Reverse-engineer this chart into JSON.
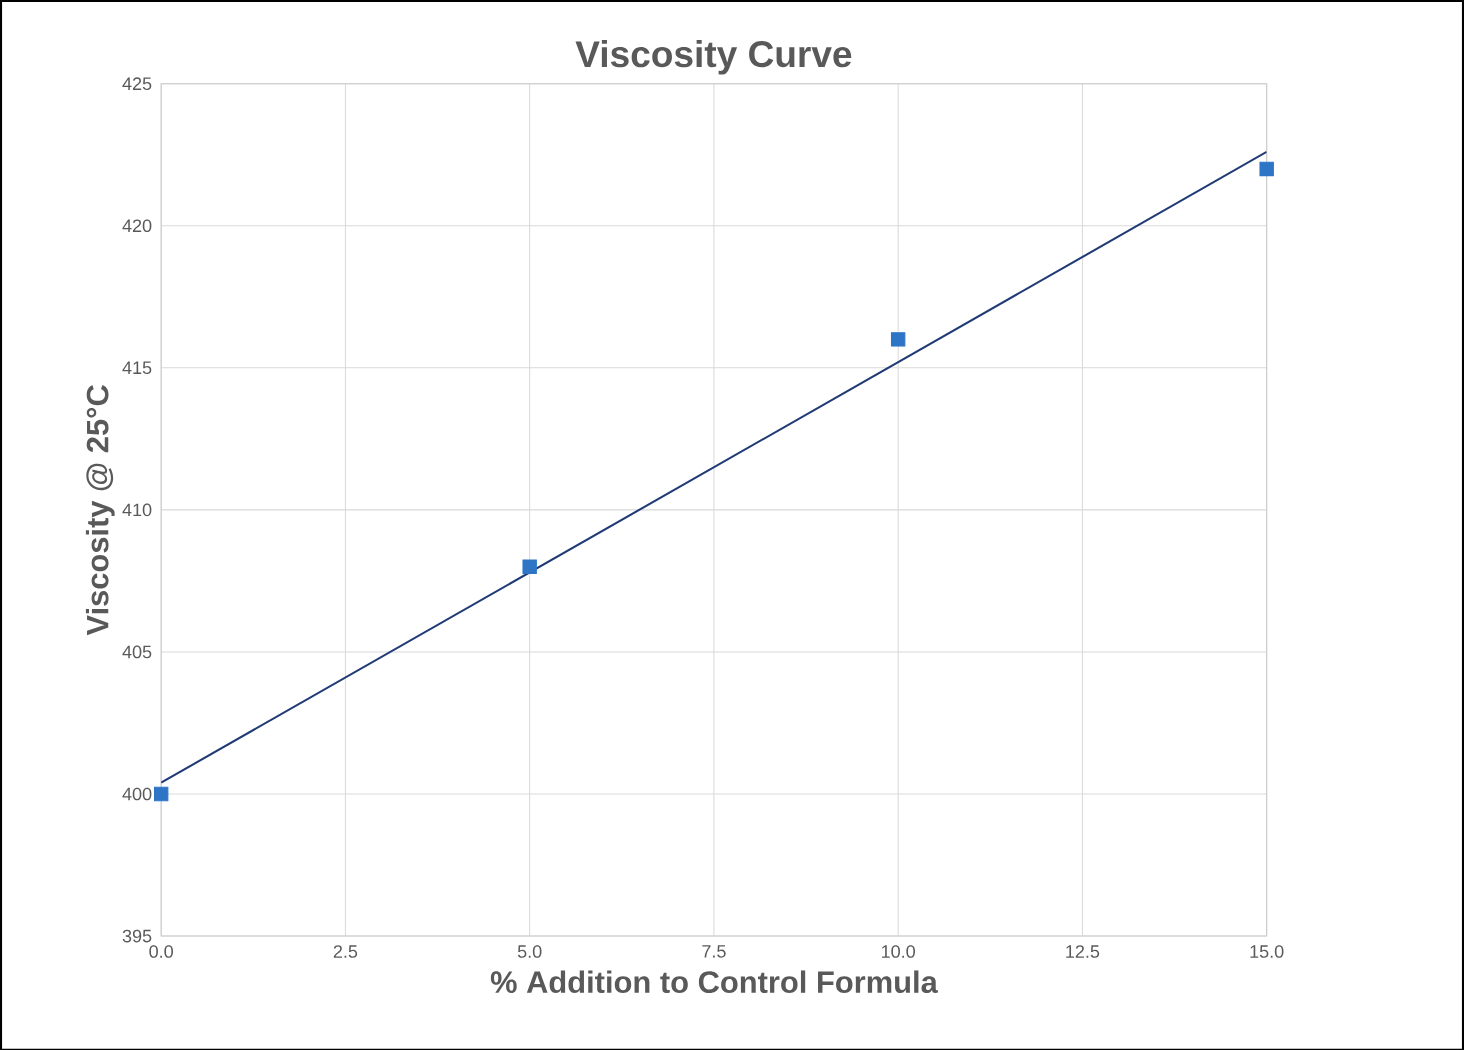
{
  "chart_data": {
    "type": "scatter",
    "title": "Viscosity Curve",
    "xlabel": "% Addition to Control Formula",
    "ylabel": "Viscosity @ 25°C",
    "series": [
      {
        "color": "#2e75c6",
        "marker": "square",
        "x": [
          0,
          5,
          10,
          15
        ],
        "values": [
          400,
          408,
          416,
          422
        ]
      },
      {
        "type": "line",
        "color": "#1f3a75",
        "marker": "none",
        "line_style": "solid",
        "x": [
          0,
          15
        ],
        "values": [
          400.4,
          422.6
        ]
      }
    ],
    "xlim": [
      0,
      15
    ],
    "ylim": [
      395,
      425
    ],
    "xticks": [
      {
        "value": 0,
        "label": "0.0"
      },
      {
        "value": 2.5,
        "label": "2.5"
      },
      {
        "value": 5,
        "label": "5.0"
      },
      {
        "value": 7.5,
        "label": "7.5"
      },
      {
        "value": 10,
        "label": "10.0"
      },
      {
        "value": 12.5,
        "label": "12.5"
      },
      {
        "value": 15,
        "label": "15.0"
      }
    ],
    "yticks": [
      395,
      400,
      405,
      410,
      415,
      420,
      425
    ],
    "grid": true
  }
}
